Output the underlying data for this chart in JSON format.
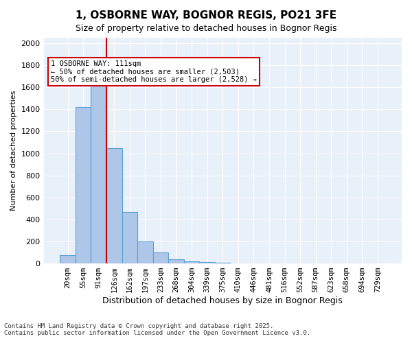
{
  "title1": "1, OSBORNE WAY, BOGNOR REGIS, PO21 3FE",
  "title2": "Size of property relative to detached houses in Bognor Regis",
  "xlabel": "Distribution of detached houses by size in Bognor Regis",
  "ylabel": "Number of detached properties",
  "categories": [
    "20sqm",
    "55sqm",
    "91sqm",
    "126sqm",
    "162sqm",
    "197sqm",
    "233sqm",
    "268sqm",
    "304sqm",
    "339sqm",
    "375sqm",
    "410sqm",
    "446sqm",
    "481sqm",
    "516sqm",
    "552sqm",
    "587sqm",
    "623sqm",
    "658sqm",
    "694sqm",
    "729sqm"
  ],
  "values": [
    75,
    1420,
    1620,
    1050,
    470,
    200,
    100,
    35,
    20,
    10,
    5,
    3,
    2,
    1,
    1,
    0,
    0,
    0,
    0,
    0,
    0
  ],
  "bar_color": "#aec6e8",
  "bar_edge_color": "#5a9fd4",
  "highlight_bar_index": 2,
  "vline_x": 2.5,
  "annotation_text": "1 OSBORNE WAY: 111sqm\n← 50% of detached houses are smaller (2,503)\n50% of semi-detached houses are larger (2,528) →",
  "annotation_box_color": "#cc0000",
  "background_color": "#e8f0fa",
  "ylim": [
    0,
    2050
  ],
  "yticks": [
    0,
    200,
    400,
    600,
    800,
    1000,
    1200,
    1400,
    1600,
    1800,
    2000
  ],
  "footer_line1": "Contains HM Land Registry data © Crown copyright and database right 2025.",
  "footer_line2": "Contains public sector information licensed under the Open Government Licence v3.0."
}
